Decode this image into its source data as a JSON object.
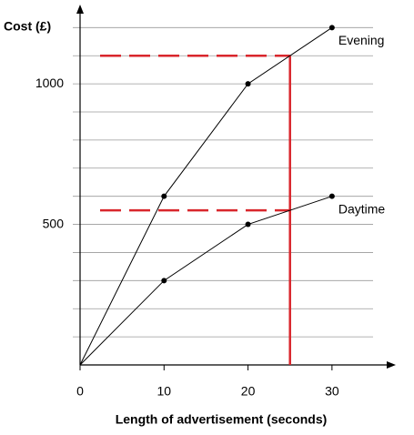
{
  "chart_data": {
    "type": "line",
    "x_label": "Length of advertisement (seconds)",
    "y_label": "Cost (£)",
    "x": [
      0,
      10,
      20,
      30
    ],
    "series": [
      {
        "name": "Evening",
        "color": "#000000",
        "values": [
          0,
          600,
          1000,
          1200
        ]
      },
      {
        "name": "Daytime",
        "color": "#000000",
        "values": [
          0,
          300,
          500,
          600
        ]
      }
    ],
    "xlim": [
      0,
      37.6
    ],
    "ylim": [
      0,
      1282
    ],
    "xticks": [
      0,
      10,
      20,
      30
    ],
    "yticks": [
      500,
      1000
    ],
    "grid_lines": [
      100,
      200,
      300,
      400,
      500,
      600,
      700,
      800,
      900,
      1000,
      1100,
      1200
    ],
    "reference": {
      "x": 25,
      "y": [
        1100,
        550
      ],
      "color": "#d9262c"
    }
  }
}
